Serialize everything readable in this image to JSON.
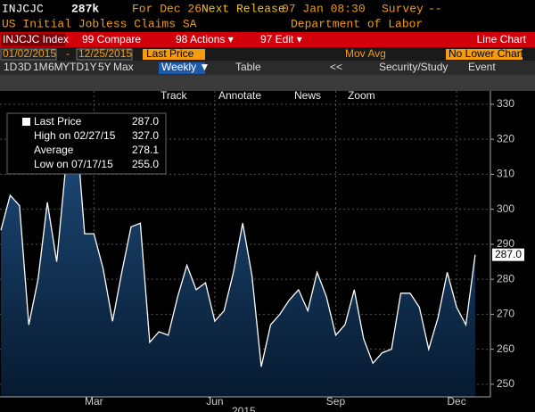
{
  "header": {
    "ticker": "INJCJC",
    "value": "287k",
    "period": "For Dec 26",
    "next_release_label": "Next Release",
    "next_release": "07 Jan 08:30",
    "survey_label": "Survey",
    "survey": "--",
    "name": "US Initial Jobless Claims SA",
    "source": "Department of Labor"
  },
  "menu": {
    "security": "INJCJC Index",
    "items": [
      "99 Compare",
      "98 Actions ▾",
      "97 Edit ▾"
    ],
    "chart_type": "Line Chart"
  },
  "range": {
    "start": "01/02/2015",
    "separator": "-",
    "end": "12/25/2015",
    "field": "Last Price",
    "mov_avg": "Mov Avg",
    "lower": "No Lower Chart"
  },
  "periods": [
    "1D",
    "3D",
    "1M",
    "6M",
    "YTD",
    "1Y",
    "5Y",
    "Max"
  ],
  "frequency": "Weekly ▼",
  "table": "Table",
  "nav": "<<",
  "study": "Security/Study",
  "event": "Event",
  "toolbar": [
    "Track",
    "Annotate",
    "News",
    "Zoom"
  ],
  "chart_data": {
    "type": "area",
    "categories": [
      null,
      null,
      null,
      null,
      null,
      null,
      null,
      null,
      null,
      null,
      "Mar",
      null,
      null,
      null,
      null,
      null,
      null,
      null,
      null,
      null,
      null,
      null,
      null,
      "Jun",
      null,
      null,
      null,
      null,
      null,
      null,
      null,
      null,
      null,
      null,
      null,
      null,
      "Sep",
      null,
      null,
      null,
      null,
      null,
      null,
      null,
      null,
      null,
      null,
      null,
      null,
      "Dec",
      null,
      null
    ],
    "series": [
      {
        "name": "Last Price",
        "color": "#ffffff",
        "values": [
          294,
          304,
          301,
          267,
          280,
          302,
          285,
          313,
          327,
          293,
          293,
          283,
          268,
          282,
          295,
          296,
          262,
          265,
          264,
          275,
          284,
          277,
          279,
          268,
          271,
          282,
          296,
          281,
          255,
          267,
          270,
          274,
          277,
          271,
          282,
          275,
          264,
          267,
          277,
          263,
          256,
          259,
          260,
          276,
          276,
          272,
          260,
          269,
          282,
          272,
          267,
          287
        ]
      }
    ],
    "ylim": [
      246.4,
      333.8
    ],
    "yticks": [
      250,
      260,
      270,
      280,
      290,
      300,
      310,
      320,
      330
    ],
    "grid": true,
    "x_axis_label": "2015",
    "last_price_label": "287.0",
    "stats": [
      {
        "label": "Last Price",
        "value": "287.0"
      },
      {
        "label": "High on 02/27/15",
        "value": "327.0"
      },
      {
        "label": "Average",
        "value": "278.1"
      },
      {
        "label": "Low on 07/17/15",
        "value": "255.0"
      }
    ]
  }
}
